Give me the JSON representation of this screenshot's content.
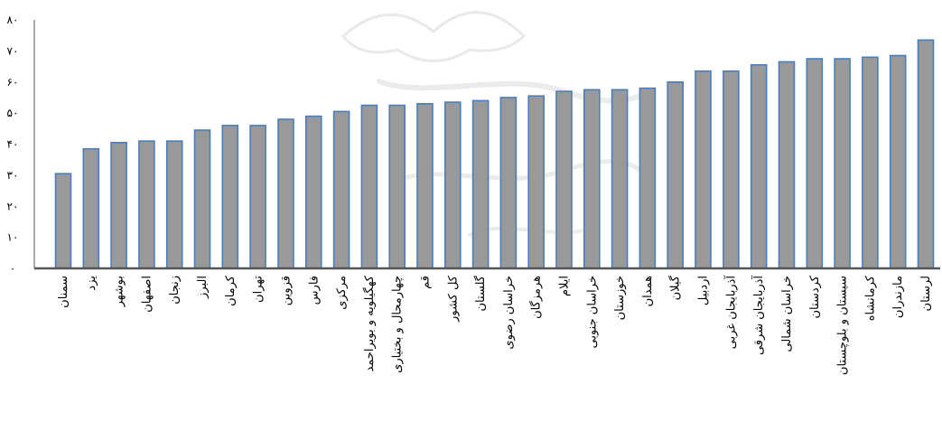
{
  "chart_data": {
    "type": "bar",
    "title": "",
    "xlabel": "",
    "ylabel": "",
    "ylim": [
      0,
      80
    ],
    "y_ticks": [
      "۰",
      "۱۰",
      "۲۰",
      "۳۰",
      "۴۰",
      "۵۰",
      "۶۰",
      "۷۰",
      "۸۰"
    ],
    "grid": false,
    "legend": "none",
    "bar_color": "#999999",
    "bar_edge_color": "#4a7ebb",
    "axis_color": "#555555",
    "categories": [
      "سمنان",
      "یزد",
      "بوشهر",
      "اصفهان",
      "زنجان",
      "البرز",
      "کرمان",
      "تهران",
      "قزوین",
      "فارس",
      "مرکزی",
      "کهگیلویه و بویراحمد",
      "چهارمحال و بختیاری",
      "قم",
      "کل کشور",
      "گلستان",
      "خراسان رضوی",
      "هرمزگان",
      "ایلام",
      "خراسان جنوبی",
      "خوزستان",
      "همدان",
      "گیلان",
      "اردبیل",
      "آذربایجان غربی",
      "آذربایجان شرقی",
      "خراسان شمالی",
      "کردستان",
      "سیستان و بلوچستان",
      "کرمانشاه",
      "مازندران",
      "لرستان"
    ],
    "values": [
      30.5,
      38.5,
      40.5,
      41,
      41,
      44.5,
      46,
      46,
      48,
      49,
      50.5,
      52.5,
      52.5,
      53,
      53.5,
      54,
      55,
      55.5,
      57,
      57.5,
      57.5,
      58,
      60,
      63.5,
      63.5,
      65.5,
      66.5,
      67.5,
      67.5,
      68,
      68.5,
      73.5
    ]
  }
}
